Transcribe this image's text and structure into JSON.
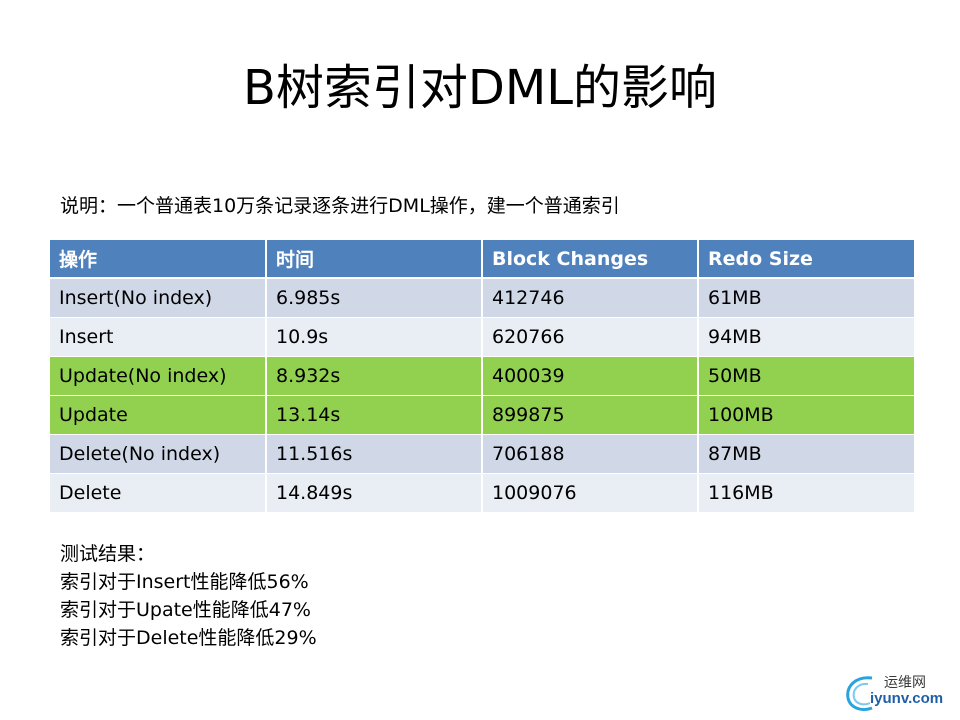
{
  "title": "B树索引对DML的影响",
  "description": "说明：一个普通表10万条记录逐条进行DML操作，建一个普通索引",
  "table": {
    "headers": [
      "操作",
      "时间",
      "Block Changes",
      "Redo Size"
    ],
    "rows": [
      {
        "op": "Insert(No index)",
        "time": "6.985s",
        "block_changes": "412746",
        "redo_size": "61MB",
        "highlight": false
      },
      {
        "op": "Insert",
        "time": "10.9s",
        "block_changes": "620766",
        "redo_size": "94MB",
        "highlight": false
      },
      {
        "op": "Update(No index)",
        "time": "8.932s",
        "block_changes": "400039",
        "redo_size": "50MB",
        "highlight": true
      },
      {
        "op": "Update",
        "time": "13.14s",
        "block_changes": "899875",
        "redo_size": "100MB",
        "highlight": true
      },
      {
        "op": "Delete(No index)",
        "time": "11.516s",
        "block_changes": "706188",
        "redo_size": "87MB",
        "highlight": false
      },
      {
        "op": "Delete",
        "time": "14.849s",
        "block_changes": "1009076",
        "redo_size": "116MB",
        "highlight": false
      }
    ]
  },
  "results": {
    "heading": "测试结果：",
    "lines": [
      "索引对于Insert性能降低56%",
      "索引对于Upate性能降低47%",
      "索引对于Delete性能降低29%"
    ]
  },
  "watermark": {
    "top_text": "运维网",
    "bottom_text": "iyunv.com"
  },
  "colors": {
    "header_bg": "#4f81bd",
    "row_odd": "#d0d8e8",
    "row_even": "#e9edf4",
    "row_highlight": "#92d050"
  }
}
